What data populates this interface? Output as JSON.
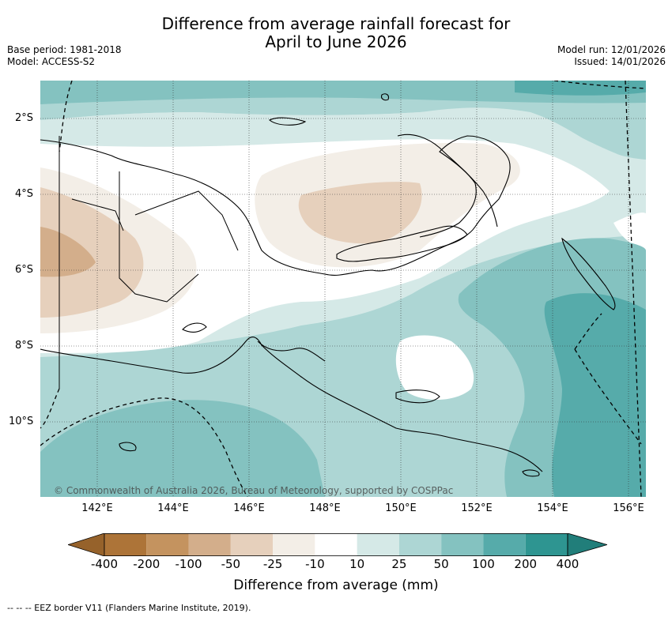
{
  "title_line1": "Difference from average rainfall forecast for",
  "title_line2": "April to June 2026",
  "base_period": "Base period: 1981-2018",
  "model": "Model: ACCESS-S2",
  "model_run": "Model run: 12/01/2026",
  "issued": "Issued: 14/01/2026",
  "copyright": "© Commonwealth of Australia 2026, Bureau of Meteorology, supported by COSPPac",
  "lat_labels": [
    "2°S",
    "4°S",
    "6°S",
    "8°S",
    "10°S"
  ],
  "lon_labels": [
    "142°E",
    "144°E",
    "146°E",
    "148°E",
    "150°E",
    "152°E",
    "154°E",
    "156°E"
  ],
  "colorbar": {
    "title": "Difference from average (mm)",
    "bounds": [
      "-400",
      "-200",
      "-100",
      "-50",
      "-25",
      "-10",
      "10",
      "25",
      "50",
      "100",
      "200",
      "400"
    ],
    "colors": [
      "#ad7438",
      "#c4935f",
      "#d3ae8b",
      "#e6d0bc",
      "#f3eee7",
      "#ffffff",
      "#d5e9e7",
      "#add6d4",
      "#84c2c0",
      "#56abaa",
      "#2e9591"
    ],
    "under_color": "#96622b",
    "over_color": "#217e7a"
  },
  "footnote": "--  --  -- EEZ border V11 (Flanders Marine Institute, 2019)."
}
